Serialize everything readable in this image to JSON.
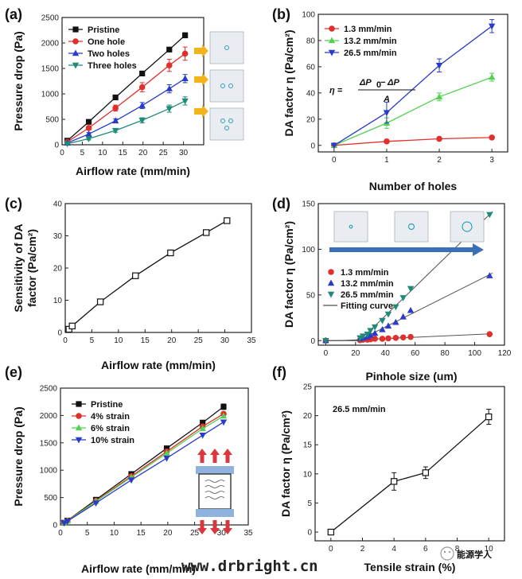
{
  "watermark": "www.drbright.cn",
  "wechat_label": "能源学人",
  "chart_data": [
    {
      "panel": "(a)",
      "type": "line",
      "xlabel": "Airflow rate (mm/min)",
      "ylabel": "Pressure drop (Pa)",
      "xlim": [
        0,
        35
      ],
      "ylim": [
        0,
        2500
      ],
      "xticks": [
        0,
        5,
        10,
        15,
        20,
        25,
        30
      ],
      "yticks": [
        0,
        500,
        1000,
        1500,
        2000,
        2500
      ],
      "x": [
        1.3,
        6.6,
        13.2,
        19.8,
        26.5,
        30.4
      ],
      "series": [
        {
          "name": "Pristine",
          "color": "#111111",
          "marker": "square",
          "values": [
            80,
            450,
            930,
            1400,
            1870,
            2150
          ],
          "err": [
            10,
            20,
            25,
            30,
            40,
            50
          ]
        },
        {
          "name": "One hole",
          "color": "#e0302c",
          "marker": "circle",
          "values": [
            55,
            330,
            720,
            1130,
            1560,
            1790
          ],
          "err": [
            10,
            40,
            60,
            90,
            120,
            130
          ]
        },
        {
          "name": "Two holes",
          "color": "#2a3bc9",
          "marker": "triangle",
          "values": [
            35,
            210,
            470,
            770,
            1100,
            1300
          ],
          "err": [
            10,
            30,
            40,
            60,
            80,
            80
          ]
        },
        {
          "name": "Three holes",
          "color": "#1f8a78",
          "marker": "triangle-down",
          "values": [
            20,
            120,
            280,
            480,
            710,
            860
          ],
          "err": [
            8,
            25,
            35,
            50,
            70,
            80
          ]
        }
      ]
    },
    {
      "panel": "(b)",
      "type": "line",
      "xlabel": "Number of holes",
      "ylabel": "DA factor η (Pa/cm²)",
      "xlim": [
        -0.3,
        3.3
      ],
      "ylim": [
        -5,
        100
      ],
      "xticks": [
        0,
        1,
        2,
        3
      ],
      "yticks": [
        0,
        20,
        40,
        60,
        80,
        100
      ],
      "x": [
        0,
        1,
        2,
        3
      ],
      "formula": [
        "η =",
        "ΔP",
        "0",
        " − ΔP",
        "A"
      ],
      "series": [
        {
          "name": "1.3 mm/min",
          "color": "#e0302c",
          "marker": "circle",
          "values": [
            0,
            3,
            5,
            6
          ],
          "err": [
            0,
            1,
            1,
            1
          ]
        },
        {
          "name": "13.2 mm/min",
          "color": "#52d152",
          "marker": "triangle",
          "values": [
            0,
            17,
            37,
            52
          ],
          "err": [
            0,
            4,
            3,
            3
          ]
        },
        {
          "name": "26.5 mm/min",
          "color": "#2a3bc9",
          "marker": "triangle-down",
          "values": [
            0,
            25,
            61,
            91
          ],
          "err": [
            0,
            8,
            5,
            5
          ]
        }
      ]
    },
    {
      "panel": "(c)",
      "type": "line",
      "xlabel": "Airflow rate (mm/min)",
      "ylabel": [
        "Sensitivity of DA",
        "factor (Pa/cm²)"
      ],
      "xlim": [
        0,
        35
      ],
      "ylim": [
        0,
        40
      ],
      "xticks": [
        0,
        5,
        10,
        15,
        20,
        25,
        30,
        35
      ],
      "yticks": [
        0,
        10,
        20,
        30,
        40
      ],
      "series": [
        {
          "name": "Sensitivity",
          "color": "#111111",
          "marker": "open-square",
          "x": [
            0.7,
            1.3,
            6.6,
            13.2,
            19.8,
            26.5,
            30.4
          ],
          "values": [
            1,
            2,
            9.5,
            17.6,
            24.7,
            31,
            34.7
          ]
        }
      ]
    },
    {
      "panel": "(d)",
      "type": "scatter",
      "xlabel": "Pinhole size (um)",
      "ylabel": "DA factor η (Pa/cm²)",
      "xlim": [
        -5,
        120
      ],
      "ylim": [
        -5,
        150
      ],
      "xticks": [
        0,
        20,
        40,
        60,
        80,
        100,
        120
      ],
      "yticks": [
        0,
        50,
        100,
        150
      ],
      "series": [
        {
          "name": "1.3 mm/min",
          "color": "#e0302c",
          "marker": "circle",
          "x": [
            0,
            23,
            25,
            28,
            30,
            33,
            38,
            42,
            47,
            52,
            57,
            110
          ],
          "values": [
            0,
            0.5,
            1,
            1,
            1.5,
            2,
            2,
            2.5,
            3,
            3.5,
            4,
            7
          ]
        },
        {
          "name": "13.2 mm/min",
          "color": "#2a3bc9",
          "marker": "triangle",
          "x": [
            0,
            23,
            25,
            28,
            30,
            33,
            38,
            42,
            47,
            52,
            57,
            110
          ],
          "values": [
            0,
            2,
            3,
            4,
            6,
            8,
            12,
            16,
            20,
            26,
            33,
            71
          ]
        },
        {
          "name": "26.5 mm/min",
          "color": "#1f8a78",
          "marker": "triangle-down",
          "x": [
            0,
            23,
            25,
            28,
            30,
            33,
            38,
            42,
            47,
            52,
            57,
            110
          ],
          "values": [
            0,
            3,
            5,
            7,
            11,
            15,
            22,
            29,
            37,
            47,
            57,
            138
          ]
        }
      ],
      "fit": {
        "name": "Fitting curve",
        "color": "#555555"
      }
    },
    {
      "panel": "(e)",
      "type": "line",
      "xlabel": "Airflow rate (mm/min)",
      "ylabel": "Pressure drop (Pa)",
      "xlim": [
        0,
        35
      ],
      "ylim": [
        0,
        2500
      ],
      "xticks": [
        0,
        5,
        10,
        15,
        20,
        25,
        30,
        35
      ],
      "yticks": [
        0,
        500,
        1000,
        1500,
        2000,
        2500
      ],
      "x": [
        0.7,
        1.3,
        6.6,
        13.2,
        19.8,
        26.5,
        30.4
      ],
      "series": [
        {
          "name": "Pristine",
          "color": "#111111",
          "marker": "square",
          "values": [
            40,
            80,
            460,
            930,
            1400,
            1870,
            2160
          ],
          "err": [
            0,
            0,
            20,
            25,
            30,
            40,
            50
          ]
        },
        {
          "name": "4% strain",
          "color": "#e0302c",
          "marker": "circle",
          "values": [
            38,
            75,
            440,
            890,
            1340,
            1800,
            2030
          ],
          "err": [
            0,
            0,
            0,
            0,
            0,
            0,
            0
          ]
        },
        {
          "name": "6% strain",
          "color": "#52d152",
          "marker": "triangle",
          "values": [
            36,
            72,
            430,
            870,
            1310,
            1760,
            1990
          ],
          "err": [
            0,
            0,
            0,
            0,
            0,
            0,
            0
          ]
        },
        {
          "name": "10% strain",
          "color": "#2a3bc9",
          "marker": "triangle-down",
          "values": [
            34,
            68,
            400,
            820,
            1220,
            1640,
            1880
          ],
          "err": [
            0,
            0,
            0,
            0,
            0,
            0,
            0
          ]
        }
      ]
    },
    {
      "panel": "(f)",
      "type": "line",
      "xlabel": "Tensile strain (%)",
      "ylabel": "DA factor η (Pa/cm²)",
      "annotation": "26.5 mm/min",
      "xlim": [
        -1,
        11
      ],
      "ylim": [
        -1.5,
        25
      ],
      "xticks": [
        0,
        2,
        4,
        6,
        8,
        10
      ],
      "yticks": [
        0,
        5,
        10,
        15,
        20,
        25
      ],
      "series": [
        {
          "name": "26.5 mm/min",
          "color": "#111111",
          "marker": "open-square",
          "x": [
            0,
            4,
            6,
            10
          ],
          "values": [
            0,
            8.7,
            10.2,
            19.8
          ],
          "err": [
            0,
            1.5,
            1,
            1.3
          ]
        }
      ]
    }
  ]
}
